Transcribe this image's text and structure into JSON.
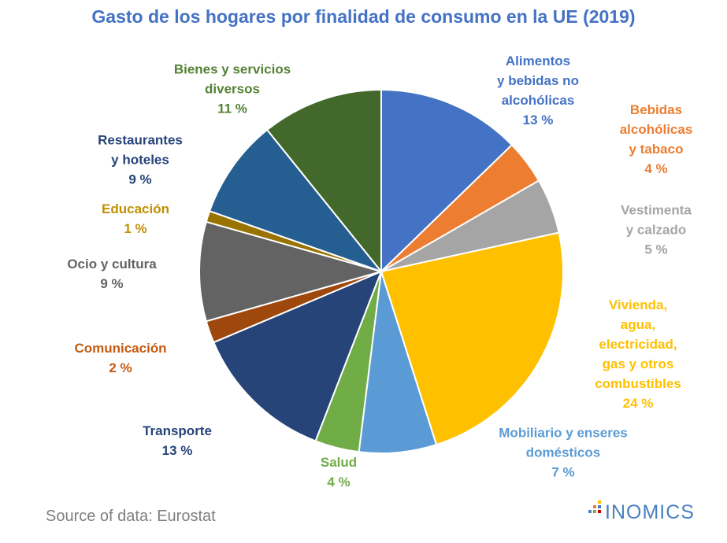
{
  "chart_data": {
    "type": "pie",
    "title": "Gasto de los hogares por finalidad de consumo en la UE (2019)",
    "categories": [
      "Alimentos\ny bebidas no\nalcohólicas",
      "Bebidas\nalcohólicas\ny tabaco",
      "Vestimenta\ny calzado",
      "Vivienda, agua,\nelectricidad,\ngas y otros\ncombustibles",
      "Mobiliario y enseres\ndomésticos",
      "Salud",
      "Transporte",
      "Comunicación",
      "Ocio y cultura",
      "Educación",
      "Restaurantes\ny hoteles",
      "Bienes y servicios\ndiversos"
    ],
    "values": [
      13,
      4,
      5,
      24,
      7,
      4,
      13,
      2,
      9,
      1,
      9,
      11
    ],
    "value_labels": [
      "13 %",
      "4 %",
      "5 %",
      "24 %",
      "7 %",
      "4 %",
      "13 %",
      "2 %",
      "9 %",
      "1 %",
      "9 %",
      "11 %"
    ],
    "colors": [
      "#4472c4",
      "#ed7d31",
      "#a5a5a5",
      "#ffc000",
      "#5b9bd5",
      "#70ad47",
      "#264478",
      "#9e480e",
      "#636363",
      "#997300",
      "#255e91",
      "#43682b"
    ],
    "label_colors": [
      "#4472c4",
      "#ed7d31",
      "#a5a5a5",
      "#ffc000",
      "#5b9bd5",
      "#70ad47",
      "#264478",
      "#c55a11",
      "#636363",
      "#bf9000",
      "#264478",
      "#548235"
    ],
    "source": "Source of data: Eurostat",
    "logo": "INOMICS"
  }
}
